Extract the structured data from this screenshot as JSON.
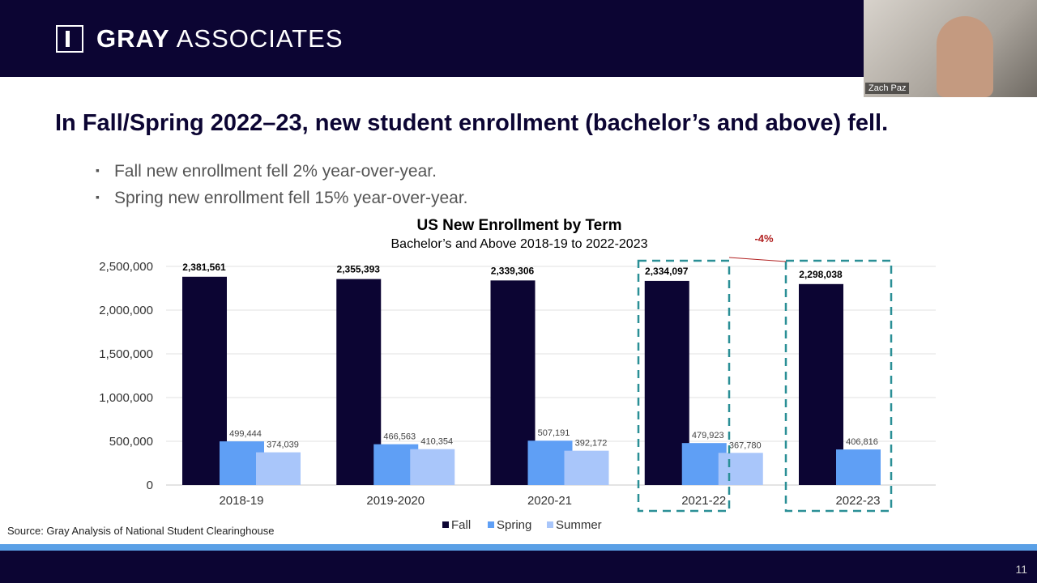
{
  "header": {
    "logo_bold": "GRAY",
    "logo_light": "ASSOCIATES"
  },
  "video": {
    "participant_name": "Zach Paz"
  },
  "slide": {
    "title": "In Fall/Spring 2022–23, new student enrollment (bachelor’s and above) fell.",
    "bullets": [
      "Fall new enrollment fell 2% year-over-year.",
      "Spring new enrollment fell 15% year-over-year."
    ],
    "source": "Source:  Gray Analysis of National Student Clearinghouse",
    "page_number": "11"
  },
  "chart_data": {
    "type": "bar",
    "title": "US New Enrollment by Term",
    "subtitle": "Bachelor’s and Above 2018-19 to 2022-2023",
    "categories": [
      "2018-19",
      "2019-2020",
      "2020-21",
      "2021-22",
      "2022-23"
    ],
    "series": [
      {
        "name": "Fall",
        "color": "#0c0533",
        "values": [
          2381561,
          2355393,
          2339306,
          2334097,
          2298038
        ],
        "labels": [
          "2,381,561",
          "2,355,393",
          "2,339,306",
          "2,334,097",
          "2,298,038"
        ]
      },
      {
        "name": "Spring",
        "color": "#5f9ff5",
        "values": [
          499444,
          466563,
          507191,
          479923,
          406816
        ],
        "labels": [
          "499,444",
          "466,563",
          "507,191",
          "479,923",
          "406,816"
        ]
      },
      {
        "name": "Summer",
        "color": "#a9c6fa",
        "values": [
          374039,
          410354,
          392172,
          367780,
          null
        ],
        "labels": [
          "374,039",
          "410,354",
          "392,172",
          "367,780",
          ""
        ]
      }
    ],
    "yticks": [
      "0",
      "500,000",
      "1,000,000",
      "1,500,000",
      "2,000,000",
      "2,500,000"
    ],
    "ylim": [
      0,
      2500000
    ],
    "grid": true,
    "legend": "bottom",
    "annotation": {
      "text": "-4%",
      "color": "#b22222"
    },
    "highlight_color": "#2a8f96",
    "highlighted_categories": [
      "2021-22",
      "2022-23"
    ]
  }
}
